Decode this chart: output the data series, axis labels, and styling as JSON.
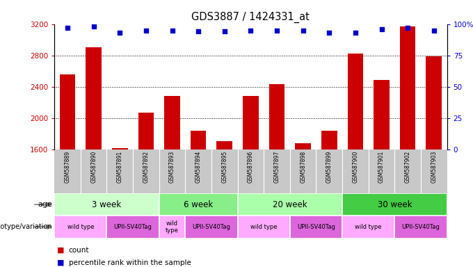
{
  "title": "GDS3887 / 1424331_at",
  "samples": [
    "GSM587889",
    "GSM587890",
    "GSM587891",
    "GSM587892",
    "GSM587893",
    "GSM587894",
    "GSM587895",
    "GSM587896",
    "GSM587897",
    "GSM587898",
    "GSM587899",
    "GSM587900",
    "GSM587901",
    "GSM587902",
    "GSM587903"
  ],
  "counts": [
    2560,
    2900,
    1620,
    2070,
    2280,
    1840,
    1710,
    2280,
    2430,
    1680,
    1840,
    2820,
    2490,
    3170,
    2790
  ],
  "percentile_ranks": [
    97,
    98,
    93,
    95,
    95,
    94,
    94,
    95,
    95,
    95,
    93,
    93,
    96,
    97,
    95
  ],
  "ylim_left": [
    1600,
    3200
  ],
  "ylim_right": [
    0,
    100
  ],
  "yticks_left": [
    1600,
    2000,
    2400,
    2800,
    3200
  ],
  "yticks_right": [
    0,
    25,
    50,
    75,
    100
  ],
  "bar_color": "#CC0000",
  "dot_color": "#0000CC",
  "age_groups": [
    {
      "label": "3 week",
      "start": 0,
      "end": 4,
      "color": "#ccffcc"
    },
    {
      "label": "6 week",
      "start": 4,
      "end": 7,
      "color": "#88ee88"
    },
    {
      "label": "20 week",
      "start": 7,
      "end": 11,
      "color": "#aaffaa"
    },
    {
      "label": "30 week",
      "start": 11,
      "end": 15,
      "color": "#44cc44"
    }
  ],
  "genotype_groups": [
    {
      "label": "wild type",
      "start": 0,
      "end": 2,
      "color": "#ffaaff"
    },
    {
      "label": "UPII-SV40Tag",
      "start": 2,
      "end": 4,
      "color": "#dd66dd"
    },
    {
      "label": "wild\ntype",
      "start": 4,
      "end": 5,
      "color": "#ffaaff"
    },
    {
      "label": "UPII-SV40Tag",
      "start": 5,
      "end": 7,
      "color": "#dd66dd"
    },
    {
      "label": "wild type",
      "start": 7,
      "end": 9,
      "color": "#ffaaff"
    },
    {
      "label": "UPII-SV40Tag",
      "start": 9,
      "end": 11,
      "color": "#dd66dd"
    },
    {
      "label": "wild type",
      "start": 11,
      "end": 13,
      "color": "#ffaaff"
    },
    {
      "label": "UPII-SV40Tag",
      "start": 13,
      "end": 15,
      "color": "#dd66dd"
    }
  ],
  "tick_color_left": "#CC0000",
  "tick_color_right": "#0000CC",
  "legend_items": [
    {
      "color": "#CC0000",
      "label": "count"
    },
    {
      "color": "#0000CC",
      "label": "percentile rank within the sample"
    }
  ]
}
